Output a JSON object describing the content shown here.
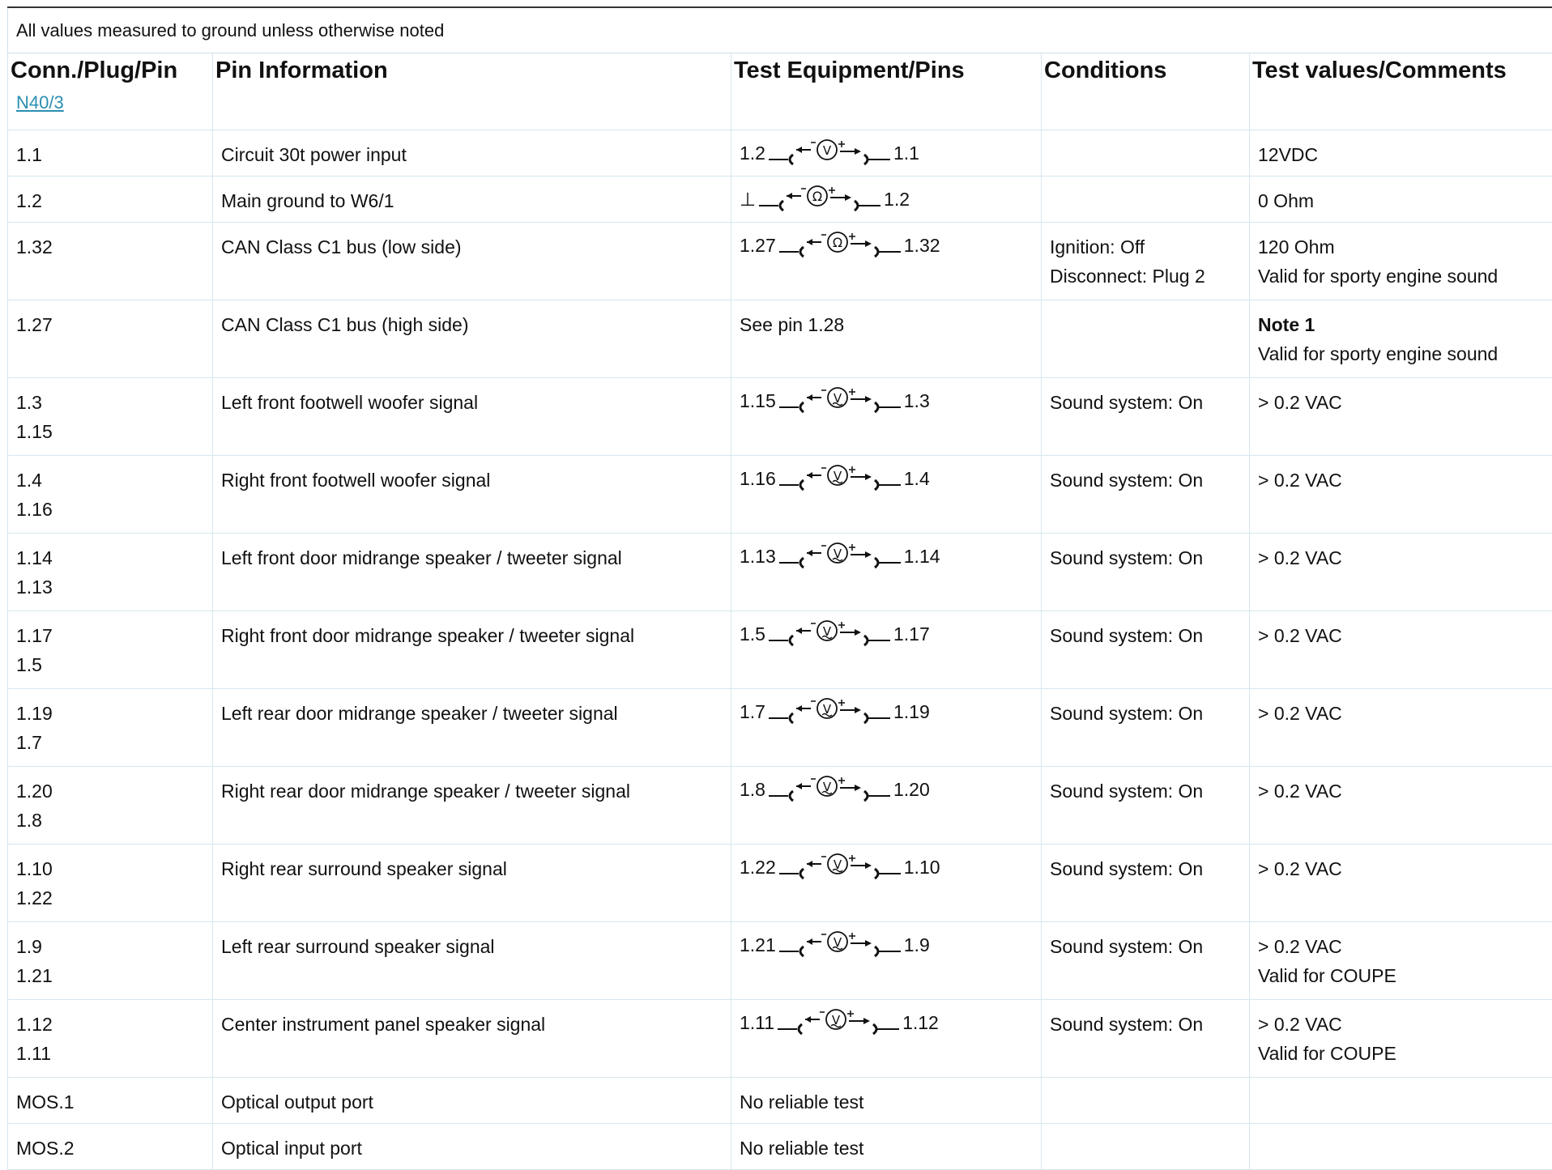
{
  "notice": "All values measured to ground unless otherwise noted",
  "headers": [
    "Conn./Plug/Pin",
    "Pin Information",
    "Test Equipment/Pins",
    "Conditions",
    "Test values/Comments"
  ],
  "connector": "N40/3",
  "rows": [
    {
      "pins": [
        "1.1"
      ],
      "info": "Circuit 30t power input",
      "test": {
        "type": "meter",
        "symbol": "V",
        "left": "1.2",
        "right": "1.1"
      },
      "conditions": [],
      "values": [
        "12VDC"
      ]
    },
    {
      "pins": [
        "1.2"
      ],
      "info": "Main ground to W6/1",
      "test": {
        "type": "meter",
        "symbol": "Ω",
        "left": "⊥",
        "right": "1.2"
      },
      "conditions": [],
      "values": [
        "0 Ohm"
      ]
    },
    {
      "pins": [
        "1.32"
      ],
      "info": "CAN Class C1 bus (low side)",
      "test": {
        "type": "meter",
        "symbol": "Ω",
        "left": "1.27",
        "right": "1.32"
      },
      "conditions": [
        "Ignition: Off",
        "Disconnect: Plug 2"
      ],
      "values": [
        "120 Ohm",
        "Valid for sporty engine sound"
      ]
    },
    {
      "pins": [
        "1.27"
      ],
      "info": "CAN Class C1 bus (high side)",
      "test": {
        "type": "text",
        "text": "See pin 1.28"
      },
      "conditions": [],
      "values_bold": "Note 1",
      "values": [
        "Valid for sporty engine sound"
      ]
    },
    {
      "pins": [
        "1.3",
        "1.15"
      ],
      "info": "Left front footwell woofer signal",
      "test": {
        "type": "meter",
        "symbol": "V~",
        "left": "1.15",
        "right": "1.3"
      },
      "conditions": [
        "Sound system: On"
      ],
      "values": [
        "> 0.2 VAC"
      ]
    },
    {
      "pins": [
        "1.4",
        "1.16"
      ],
      "info": "Right front footwell woofer signal",
      "test": {
        "type": "meter",
        "symbol": "V~",
        "left": "1.16",
        "right": "1.4"
      },
      "conditions": [
        "Sound system: On"
      ],
      "values": [
        "> 0.2 VAC"
      ]
    },
    {
      "pins": [
        "1.14",
        "1.13"
      ],
      "info": "Left front door midrange speaker / tweeter signal",
      "test": {
        "type": "meter",
        "symbol": "V~",
        "left": "1.13",
        "right": "1.14"
      },
      "conditions": [
        "Sound system: On"
      ],
      "values": [
        "> 0.2 VAC"
      ]
    },
    {
      "pins": [
        "1.17",
        "1.5"
      ],
      "info": "Right front door midrange speaker / tweeter signal",
      "test": {
        "type": "meter",
        "symbol": "V~",
        "left": "1.5",
        "right": "1.17"
      },
      "conditions": [
        "Sound system: On"
      ],
      "values": [
        "> 0.2 VAC"
      ]
    },
    {
      "pins": [
        "1.19",
        "1.7"
      ],
      "info": "Left rear door midrange speaker / tweeter signal",
      "test": {
        "type": "meter",
        "symbol": "V~",
        "left": "1.7",
        "right": "1.19"
      },
      "conditions": [
        "Sound system: On"
      ],
      "values": [
        "> 0.2 VAC"
      ]
    },
    {
      "pins": [
        "1.20",
        "1.8"
      ],
      "info": "Right rear door midrange speaker / tweeter signal",
      "test": {
        "type": "meter",
        "symbol": "V~",
        "left": "1.8",
        "right": "1.20"
      },
      "conditions": [
        "Sound system: On"
      ],
      "values": [
        "> 0.2 VAC"
      ]
    },
    {
      "pins": [
        "1.10",
        "1.22"
      ],
      "info": "Right rear surround speaker signal",
      "test": {
        "type": "meter",
        "symbol": "V~",
        "left": "1.22",
        "right": "1.10"
      },
      "conditions": [
        "Sound system: On"
      ],
      "values": [
        "> 0.2 VAC"
      ]
    },
    {
      "pins": [
        "1.9",
        "1.21"
      ],
      "info": "Left rear surround speaker signal",
      "test": {
        "type": "meter",
        "symbol": "V~",
        "left": "1.21",
        "right": "1.9"
      },
      "conditions": [
        "Sound system: On"
      ],
      "values": [
        "> 0.2 VAC",
        "Valid for COUPE"
      ]
    },
    {
      "pins": [
        "1.12",
        "1.11"
      ],
      "info": "Center instrument panel speaker signal",
      "test": {
        "type": "meter",
        "symbol": "V~",
        "left": "1.11",
        "right": "1.12"
      },
      "conditions": [
        "Sound system: On"
      ],
      "values": [
        "> 0.2 VAC",
        "Valid for COUPE"
      ]
    },
    {
      "pins": [
        "MOS.1"
      ],
      "info": "Optical output port",
      "test": {
        "type": "text",
        "text": "No reliable test"
      },
      "conditions": [],
      "values": []
    },
    {
      "pins": [
        "MOS.2"
      ],
      "info": "Optical input port",
      "test": {
        "type": "text",
        "text": "No reliable test"
      },
      "conditions": [],
      "values": []
    }
  ]
}
